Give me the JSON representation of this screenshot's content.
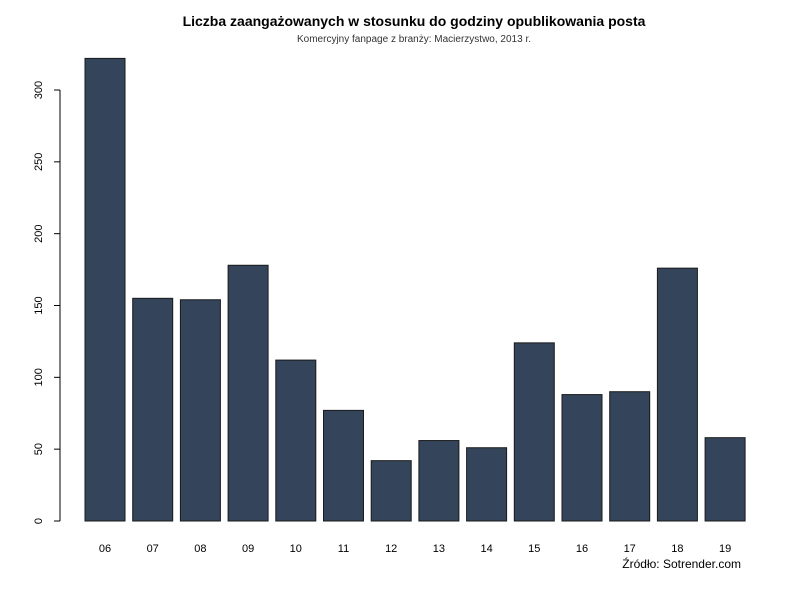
{
  "chart_data": {
    "type": "bar",
    "title": "Liczba zaangażowanych w stosunku do godziny opublikowania posta",
    "subtitle": "Komercyjny fanpage z branży: Macierzystwo, 2013 r.",
    "source": "Źródło: Sotrender.com",
    "xlabel": "",
    "ylabel": "",
    "categories": [
      "06",
      "07",
      "08",
      "09",
      "10",
      "11",
      "12",
      "13",
      "14",
      "15",
      "16",
      "17",
      "18",
      "19"
    ],
    "values": [
      322,
      155,
      154,
      178,
      112,
      77,
      42,
      56,
      51,
      124,
      88,
      90,
      176,
      58
    ],
    "ylim": [
      0,
      300
    ],
    "yticks": [
      0,
      50,
      100,
      150,
      200,
      250,
      300
    ],
    "grid": false,
    "bar_color": "#34445a"
  }
}
